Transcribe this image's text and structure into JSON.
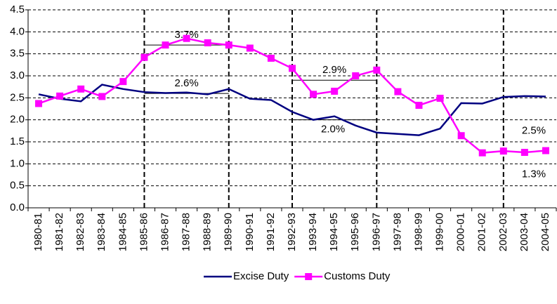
{
  "chart_data": {
    "type": "line",
    "categories": [
      "1980-81",
      "1981-82",
      "1982-83",
      "1983-84",
      "1984-85",
      "1985-86",
      "1986-87",
      "1987-88",
      "1988-89",
      "1989-90",
      "1990-91",
      "1991-92",
      "1992-93",
      "1993-94",
      "1994-95",
      "1995-96",
      "1996-97",
      "1997-98",
      "1998-99",
      "1999-00",
      "2000-01",
      "2001-02",
      "2002-03",
      "2003-04",
      "2004-05"
    ],
    "series": [
      {
        "name": "Excise Duty",
        "color": "#000080",
        "marker": "none",
        "values": [
          2.58,
          2.48,
          2.42,
          2.8,
          2.7,
          2.63,
          2.61,
          2.62,
          2.58,
          2.7,
          2.48,
          2.45,
          2.18,
          2.0,
          2.08,
          1.87,
          1.71,
          1.68,
          1.65,
          1.8,
          2.38,
          2.37,
          2.52,
          2.54,
          2.53
        ]
      },
      {
        "name": "Customs Duty",
        "color": "#ff00ff",
        "marker": "square",
        "values": [
          2.37,
          2.54,
          2.7,
          2.53,
          2.87,
          3.42,
          3.7,
          3.85,
          3.75,
          3.7,
          3.63,
          3.4,
          3.17,
          2.58,
          2.65,
          3.0,
          3.13,
          2.64,
          2.33,
          2.49,
          1.64,
          1.25,
          1.29,
          1.26,
          1.3
        ]
      }
    ],
    "ylim": [
      0,
      4.5
    ],
    "yticks": [
      {
        "value": 0,
        "label": "0.0"
      },
      0.5,
      {
        "value": 1,
        "label": "1.0"
      },
      1.5,
      {
        "value": 2,
        "label": "2.0"
      },
      2.5,
      {
        "value": 3,
        "label": "3.0"
      },
      3.5,
      {
        "value": 4,
        "label": "4.0"
      },
      4.5
    ],
    "grid": true,
    "legend": "bottom",
    "dividers": [
      "1985-86",
      "1989-90",
      "1992-93",
      "1996-97",
      "2002-03"
    ],
    "annotations": [
      {
        "label": "3.7%",
        "value": 3.7,
        "from": "1985-86",
        "to": "1989-90",
        "position": "above"
      },
      {
        "label": "2.6%",
        "value": 2.6,
        "from": "1985-86",
        "to": "1989-90",
        "position": "above"
      },
      {
        "label": "2.9%",
        "value": 2.9,
        "from": "1992-93",
        "to": "1996-97",
        "position": "above"
      },
      {
        "label": "2.0%",
        "value": 2.0,
        "from": "1992-93",
        "to": "1996-97",
        "position": "below"
      },
      {
        "label": "2.5%",
        "value": 2.5,
        "from": "2002-03",
        "to": "2004-05",
        "position": "far-below"
      },
      {
        "label": "1.3%",
        "value": 1.3,
        "from": "2002-03",
        "to": "2004-05",
        "position": "far-below"
      }
    ]
  }
}
